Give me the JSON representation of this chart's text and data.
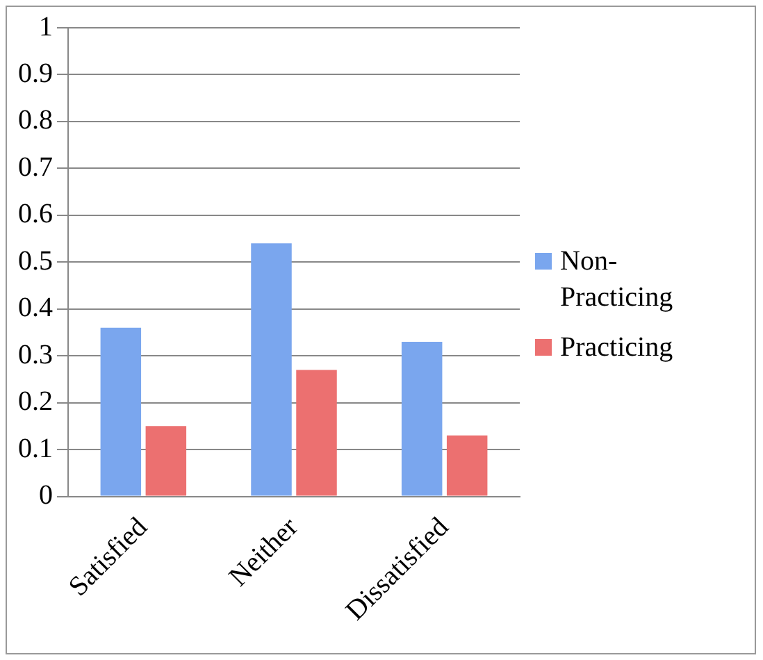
{
  "chart_data": {
    "type": "bar",
    "categories": [
      "Satisfied",
      "Neither",
      "Dissatisfied"
    ],
    "series": [
      {
        "name": "Non-Practicing",
        "color": "#7aa6ee",
        "values": [
          0.36,
          0.54,
          0.33
        ]
      },
      {
        "name": "Practicing",
        "color": "#ec7070",
        "values": [
          0.15,
          0.27,
          0.13
        ]
      }
    ],
    "ylim": [
      0,
      1
    ],
    "yticks": [
      0,
      0.1,
      0.2,
      0.3,
      0.4,
      0.5,
      0.6,
      0.7,
      0.8,
      0.9,
      1
    ],
    "grid": "y",
    "legend": "right"
  }
}
